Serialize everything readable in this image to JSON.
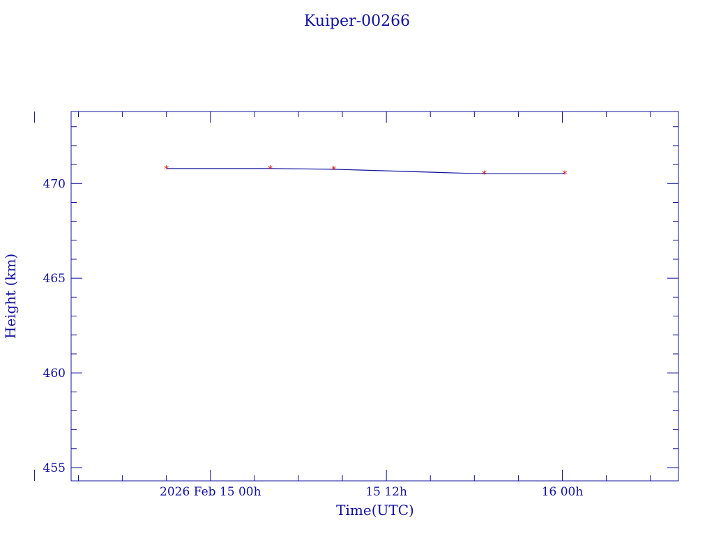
{
  "chart_data": {
    "type": "line",
    "title": "Kuiper-00266",
    "xlabel": "Time(UTC)",
    "ylabel": "Height (km)",
    "x_tick_labels": [
      {
        "t": "2026-02-15T00:00",
        "label": "2026 Feb 15  00h"
      },
      {
        "t": "2026-02-15T12:00",
        "label": "15  12h"
      },
      {
        "t": "2026-02-16T00:00",
        "label": "16  00h"
      }
    ],
    "y_ticks": [
      455,
      460,
      465,
      470
    ],
    "xlim": [
      "2026-02-14T14:30",
      "2026-02-16T07:55"
    ],
    "ylim": [
      454.3,
      473.8
    ],
    "grid": false,
    "colors": {
      "axis": "#1010a0",
      "line": "#1010a0",
      "marker": "#e01010"
    },
    "series": [
      {
        "x": [
          "2026-02-14T21:00",
          "2026-02-15T04:05",
          "2026-02-15T08:25",
          "2026-02-15T18:40",
          "2026-02-16T00:10"
        ],
        "y": [
          470.79,
          470.79,
          470.75,
          470.51,
          470.51
        ]
      }
    ]
  }
}
